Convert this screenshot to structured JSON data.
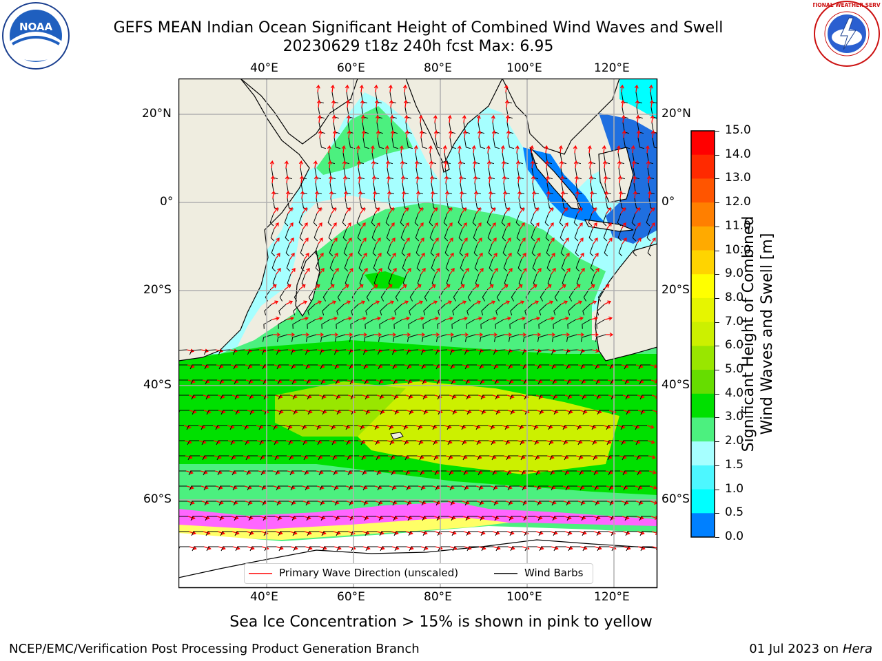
{
  "header": {
    "title_line1": "GEFS MEAN Indian Ocean Significant Height of Combined Wind Waves and Swell",
    "title_line2": "20230629 t18z 240h fcst   Max: 6.95"
  },
  "logos": {
    "left_icon": "noaa-logo",
    "left_text": "NOAA",
    "right_icon": "nws-logo",
    "right_text": "NATIONAL WEATHER SERVICE"
  },
  "map": {
    "lon_ticks": [
      "40°E",
      "60°E",
      "80°E",
      "100°E",
      "120°E"
    ],
    "lat_ticks": [
      "20°N",
      "0°",
      "20°S",
      "40°S",
      "60°S"
    ],
    "lon_range": [
      20,
      130
    ],
    "lat_range": [
      -78,
      28
    ],
    "land_color": "#efede0",
    "ice_color": "#ffffff",
    "ice_band_colors": [
      "#ff66ff",
      "#ffff66",
      "#ff9966"
    ]
  },
  "legend": {
    "wave_direction_label": "Primary Wave Direction (unscaled)",
    "wind_barbs_label": "Wind Barbs",
    "wave_color": "#ff0000",
    "barb_color": "#000000"
  },
  "colorbar": {
    "label_line1": "Significant Height of Combined",
    "label_line2": "Wind Waves and Swell [m]",
    "ticks": [
      "15.0",
      "14.0",
      "13.0",
      "12.0",
      "11.0",
      "10.0",
      "9.0",
      "8.0",
      "7.0",
      "6.0",
      "5.0",
      "4.0",
      "3.0",
      "2.0",
      "1.5",
      "1.0",
      "0.5",
      "0.0"
    ],
    "colors_top_to_bottom": [
      "#ff0000",
      "#ff2a00",
      "#ff5500",
      "#ff7f00",
      "#ffaa00",
      "#ffd400",
      "#ffff00",
      "#e6f500",
      "#ccf000",
      "#99e600",
      "#66dd00",
      "#00e000",
      "#4cf07f",
      "#a6ffff",
      "#4df7ff",
      "#00ffff",
      "#0080ff",
      "#0000ff"
    ]
  },
  "footer": {
    "ice_note": "Sea Ice Concentration > 15% is shown in pink to yellow",
    "credit_left": "NCEP/EMC/Verification Post Processing Product Generation Branch",
    "credit_date": "01 Jul 2023 on ",
    "credit_system": "Hera"
  }
}
